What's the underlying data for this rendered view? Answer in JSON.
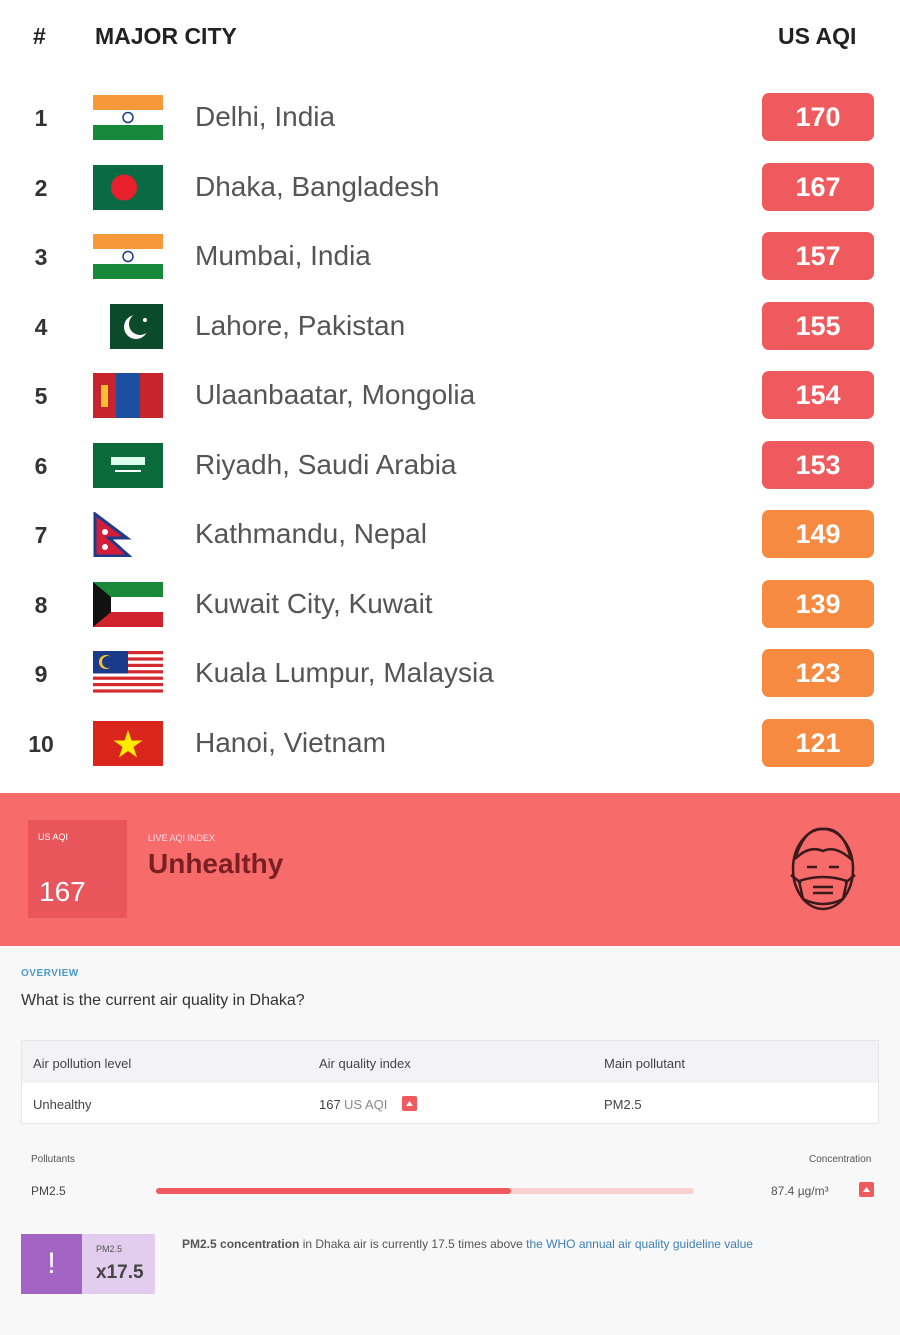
{
  "header": {
    "rank": "#",
    "city": "MAJOR CITY",
    "aqi": "US AQI"
  },
  "rows": [
    {
      "rank": "1",
      "city": "Delhi, India",
      "aqi": 170,
      "color": "#ef5a5e"
    },
    {
      "rank": "2",
      "city": "Dhaka, Bangladesh",
      "aqi": 167,
      "color": "#ef5a5e"
    },
    {
      "rank": "3",
      "city": "Mumbai, India",
      "aqi": 157,
      "color": "#ef5a5e"
    },
    {
      "rank": "4",
      "city": "Lahore, Pakistan",
      "aqi": 155,
      "color": "#ef5a5e"
    },
    {
      "rank": "5",
      "city": "Ulaanbaatar, Mongolia",
      "aqi": 154,
      "color": "#ef5a5e"
    },
    {
      "rank": "6",
      "city": "Riyadh, Saudi Arabia",
      "aqi": 153,
      "color": "#ef5a5e"
    },
    {
      "rank": "7",
      "city": "Kathmandu, Nepal",
      "aqi": 149,
      "color": "#f58a40"
    },
    {
      "rank": "8",
      "city": "Kuwait City, Kuwait",
      "aqi": 139,
      "color": "#f58a40"
    },
    {
      "rank": "9",
      "city": "Kuala Lumpur, Malaysia",
      "aqi": 123,
      "color": "#f58a40"
    },
    {
      "rank": "10",
      "city": "Hanoi, Vietnam",
      "aqi": 121,
      "color": "#f58a40"
    }
  ],
  "banner": {
    "aqi_label": "US AQI",
    "aqi": 167,
    "index_label": "LIVE AQI INDEX",
    "status": "Unhealthy"
  },
  "overview": {
    "label": "OVERVIEW",
    "question": "What is the current air quality in Dhaka?",
    "table": {
      "headers": [
        "Air pollution level",
        "Air quality index",
        "Main pollutant"
      ],
      "level": "Unhealthy",
      "aqi": 167,
      "aqi_unit": "US AQI",
      "pollutant": "PM2.5"
    },
    "pollutants": {
      "label": "Pollutants",
      "concentration_label": "Concentration",
      "name": "PM2.5",
      "value": 87.4,
      "unit": "µg/m³"
    },
    "who": {
      "pollutant": "PM2.5",
      "factor": "x17.5",
      "lead": "PM2.5 concentration",
      "text": " in Dhaka air is currently 17.5 times above ",
      "link": "the WHO annual air quality guideline value"
    }
  }
}
